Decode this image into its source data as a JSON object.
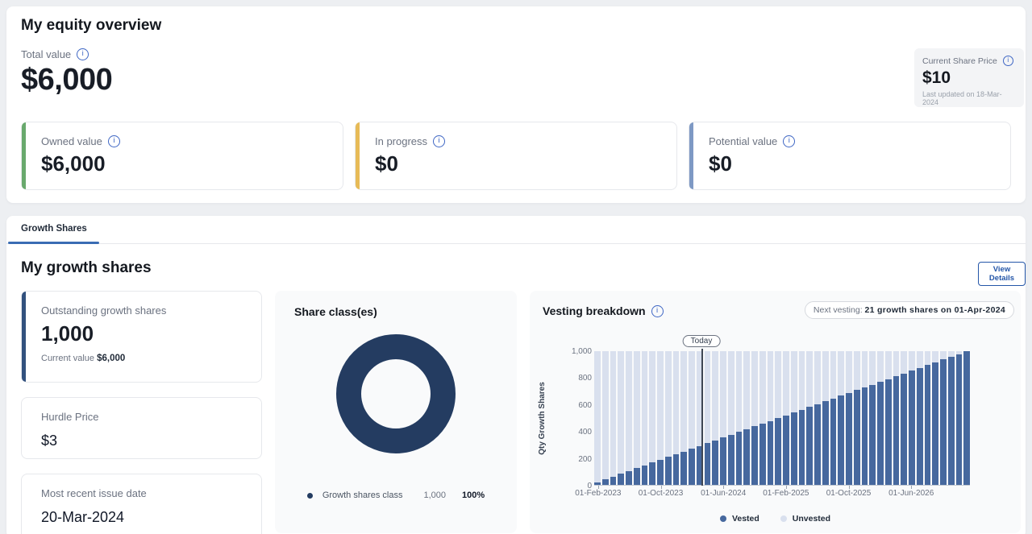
{
  "equity_overview": {
    "title": "My equity overview",
    "total_value_label": "Total value",
    "total_value": "$6,000",
    "share_price": {
      "label": "Current Share Price",
      "value": "$10",
      "updated": "Last updated on 18-Mar-2024"
    },
    "cards": [
      {
        "label": "Owned value",
        "value": "$6,000",
        "accent": "#69a96d"
      },
      {
        "label": "In progress",
        "value": "$0",
        "accent": "#e7bb57"
      },
      {
        "label": "Potential value",
        "value": "$0",
        "accent": "#7e99c4"
      }
    ]
  },
  "growth_section": {
    "tab": "Growth Shares",
    "title": "My growth shares",
    "view_details": "View Details",
    "outstanding": {
      "label": "Outstanding growth shares",
      "value": "1,000",
      "current_value_label": "Current value",
      "current_value": "$6,000",
      "accent": "#32517e"
    },
    "hurdle": {
      "label": "Hurdle Price",
      "value": "$3"
    },
    "issue_date": {
      "label": "Most recent issue date",
      "value": "20-Mar-2024"
    },
    "share_class": {
      "title": "Share class(es)",
      "legend_label": "Growth shares class",
      "legend_qty": "1,000",
      "legend_pct": "100%"
    },
    "vesting": {
      "title": "Vesting breakdown",
      "next_vesting_label": "Next vesting:",
      "next_vesting_value": "21 growth shares on 01-Apr-2024",
      "today_label": "Today"
    }
  },
  "chart_data": [
    {
      "type": "pie",
      "donut": true,
      "title": "Share class(es)",
      "labels": [
        "Growth shares class"
      ],
      "values": [
        1000
      ],
      "percentages": [
        100
      ],
      "colors": [
        "#243c61"
      ],
      "legend_position": "bottom"
    },
    {
      "type": "bar",
      "stacked": true,
      "title": "Vesting breakdown",
      "ylabel": "Qty Growth Shares",
      "ylim": [
        0,
        1000
      ],
      "yticks": [
        "0",
        "200",
        "400",
        "600",
        "800",
        "1,000"
      ],
      "ytick_values": [
        0,
        200,
        400,
        600,
        800,
        1000
      ],
      "x_interval": "monthly",
      "x_start": "01-Feb-2023",
      "x_end": "01-Jan-2027",
      "xtick_labels": [
        "01-Feb-2023",
        "01-Oct-2023",
        "01-Jun-2024",
        "01-Feb-2025",
        "01-Oct-2025",
        "01-Jun-2026"
      ],
      "xtick_bar_index": [
        0,
        8,
        16,
        24,
        32,
        40
      ],
      "grid": false,
      "legend_position": "bottom",
      "annotation": {
        "label": "Today",
        "bar_position": 13.7
      },
      "series": [
        {
          "name": "Vested",
          "color": "#46689e",
          "values": [
            21,
            42,
            63,
            83,
            104,
            125,
            146,
            167,
            188,
            208,
            229,
            250,
            271,
            292,
            313,
            333,
            354,
            375,
            396,
            417,
            438,
            458,
            479,
            500,
            521,
            542,
            563,
            583,
            604,
            625,
            646,
            667,
            688,
            708,
            729,
            750,
            771,
            792,
            813,
            833,
            854,
            875,
            896,
            917,
            938,
            958,
            979,
            1000
          ]
        },
        {
          "name": "Unvested",
          "color": "#d9e0ee",
          "values": [
            979,
            958,
            937,
            917,
            896,
            875,
            854,
            833,
            812,
            792,
            771,
            750,
            729,
            708,
            687,
            667,
            646,
            625,
            604,
            583,
            562,
            542,
            521,
            500,
            479,
            458,
            437,
            417,
            396,
            375,
            354,
            333,
            312,
            292,
            271,
            250,
            229,
            208,
            187,
            167,
            146,
            125,
            104,
            83,
            62,
            42,
            21,
            0
          ]
        }
      ]
    }
  ]
}
